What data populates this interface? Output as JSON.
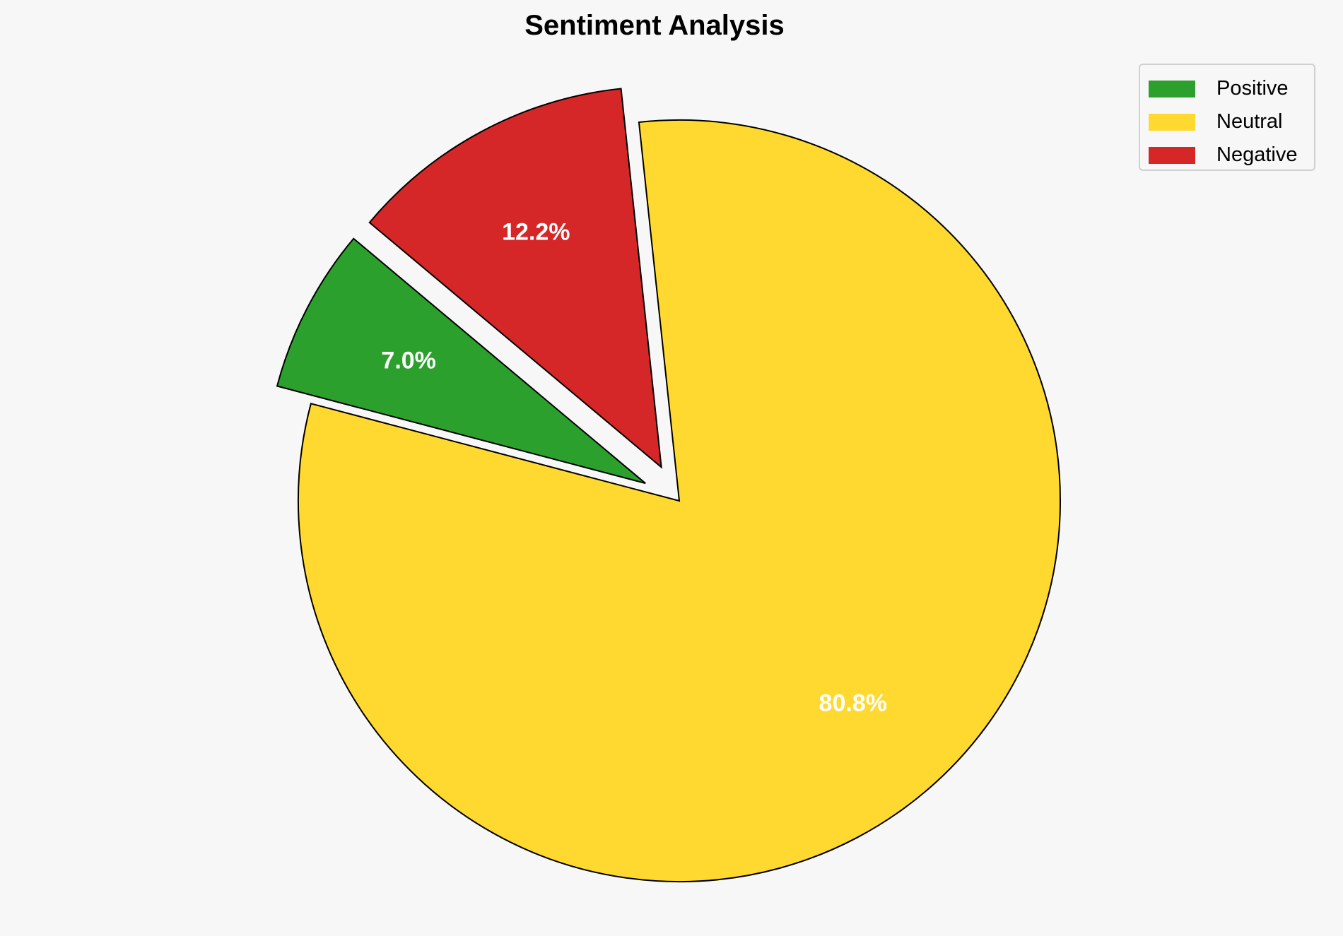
{
  "chart_data": {
    "type": "pie",
    "title": "Sentiment Analysis",
    "categories": [
      "Positive",
      "Neutral",
      "Negative"
    ],
    "values": [
      7.0,
      80.8,
      12.2
    ],
    "labels": [
      "7.0%",
      "80.8%",
      "12.2%"
    ],
    "colors": [
      "#2ca02c",
      "#ffd92f",
      "#d62728"
    ],
    "explode": [
      0.1,
      0,
      0.1
    ],
    "start_angle": 140,
    "direction": "counterclockwise",
    "legend_position": "top-right"
  }
}
